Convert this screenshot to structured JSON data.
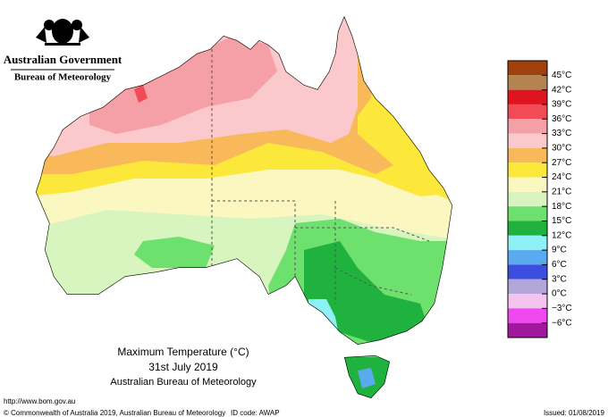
{
  "header": {
    "agency": "Australian Government",
    "bureau": "Bureau of Meteorology"
  },
  "map": {
    "title": "Maximum Temperature (°C)",
    "date": "31st July 2019",
    "source": "Australian Bureau of Meteorology"
  },
  "legend": {
    "labels": [
      "45°C",
      "42°C",
      "39°C",
      "36°C",
      "33°C",
      "30°C",
      "27°C",
      "24°C",
      "21°C",
      "18°C",
      "15°C",
      "12°C",
      "9°C",
      "6°C",
      "3°C",
      "0°C",
      "−3°C",
      "−6°C"
    ],
    "colors": [
      "#a0400c",
      "#b5834f",
      "#e0141e",
      "#f24b55",
      "#f4a0a6",
      "#fbc9cb",
      "#f9b95a",
      "#fbe83a",
      "#fbf7c0",
      "#d8f5c0",
      "#6ee06e",
      "#1fb23f",
      "#8ef1f5",
      "#5aaaf0",
      "#3a4fe0",
      "#b3a6d9",
      "#f4c3f0",
      "#f048f0",
      "#a0189c"
    ]
  },
  "footer": {
    "url": "http://www.bom.gov.au",
    "copyright": "© Commonwealth of Australia 2019, Australian Bureau of Meteorology",
    "id_code": "ID code: AWAP",
    "issued": "Issued: 01/08/2019"
  }
}
